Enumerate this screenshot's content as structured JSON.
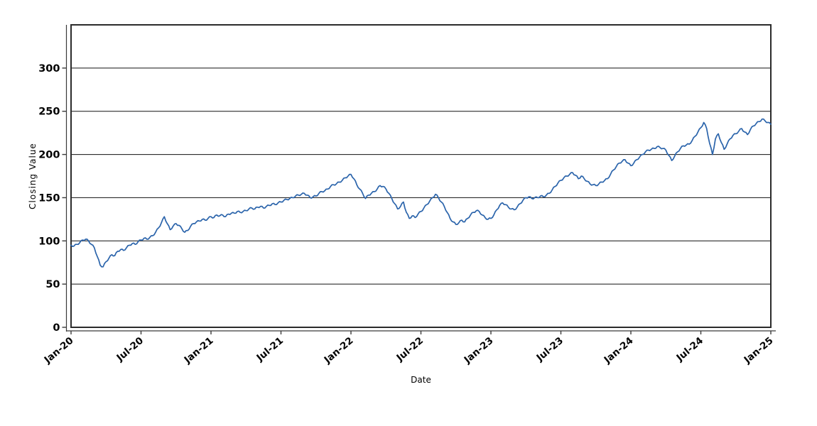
{
  "figure": {
    "background": "#ffffff",
    "plot_border_color": "#2b2b2b",
    "gridline_color": "#111111",
    "axis_line_color": "#3a3a3a",
    "xlabel": "Date",
    "ylabel": "Closing Value"
  },
  "chart_data": {
    "type": "line",
    "title": "",
    "xlabel": "Date",
    "ylabel": "Closing Value",
    "legend": "none",
    "grid": "horizontal-solid-black",
    "ylim": [
      0,
      350
    ],
    "y_ticks": [
      0,
      50,
      100,
      150,
      200,
      250,
      300
    ],
    "xlim_months": [
      0,
      60
    ],
    "x_tick_months": [
      0,
      6,
      12,
      18,
      24,
      30,
      36,
      42,
      48,
      54,
      60
    ],
    "x_tick_labels": [
      "Jan-20",
      "Jul-20",
      "Jan-21",
      "Jul-21",
      "Jan-22",
      "Jul-22",
      "Jan-23",
      "Jul-23",
      "Jan-24",
      "Jul-24",
      "Jan-25"
    ],
    "x_tick_rotation_deg": -40,
    "series": [
      {
        "name": "Closing Value",
        "color": "#2b64ab",
        "line_width": 1.7,
        "x_start_label": "Jan-20",
        "x_step_months": 0.25,
        "values": [
          95,
          94,
          96,
          98,
          101,
          102,
          100,
          96,
          92,
          82,
          72,
          70,
          76,
          80,
          84,
          83,
          88,
          90,
          89,
          92,
          95,
          97,
          96,
          99,
          101,
          103,
          102,
          104,
          106,
          110,
          115,
          121,
          128,
          120,
          113,
          117,
          120,
          118,
          114,
          110,
          112,
          117,
          120,
          122,
          123,
          125,
          124,
          126,
          128,
          127,
          130,
          129,
          130,
          128,
          131,
          132,
          132,
          134,
          133,
          134,
          135,
          137,
          138,
          137,
          139,
          140,
          138,
          140,
          141,
          143,
          142,
          144,
          145,
          147,
          148,
          149,
          150,
          152,
          153,
          154,
          155,
          153,
          150,
          151,
          152,
          155,
          157,
          158,
          160,
          163,
          165,
          166,
          168,
          170,
          173,
          175,
          177,
          172,
          165,
          160,
          155,
          149,
          153,
          155,
          157,
          160,
          164,
          163,
          160,
          155,
          149,
          143,
          137,
          140,
          145,
          133,
          126,
          129,
          127,
          131,
          134,
          138,
          142,
          146,
          150,
          154,
          150,
          145,
          140,
          133,
          126,
          122,
          119,
          121,
          124,
          122,
          126,
          130,
          133,
          135,
          134,
          130,
          127,
          125,
          126,
          130,
          136,
          141,
          144,
          142,
          139,
          137,
          136,
          139,
          143,
          147,
          150,
          151,
          149,
          150,
          150,
          152,
          151,
          153,
          155,
          159,
          163,
          167,
          170,
          173,
          175,
          177,
          179,
          176,
          172,
          175,
          172,
          169,
          166,
          165,
          164,
          166,
          168,
          170,
          172,
          177,
          182,
          186,
          190,
          192,
          194,
          190,
          187,
          190,
          194,
          197,
          200,
          203,
          205,
          206,
          207,
          209,
          208,
          207,
          205,
          199,
          193,
          198,
          203,
          207,
          210,
          211,
          212,
          216,
          221,
          226,
          231,
          237,
          230,
          213,
          200,
          218,
          224,
          214,
          206,
          212,
          218,
          222,
          224,
          227,
          230,
          226,
          223,
          229,
          233,
          236,
          238,
          241,
          239,
          237,
          235
        ]
      }
    ]
  }
}
